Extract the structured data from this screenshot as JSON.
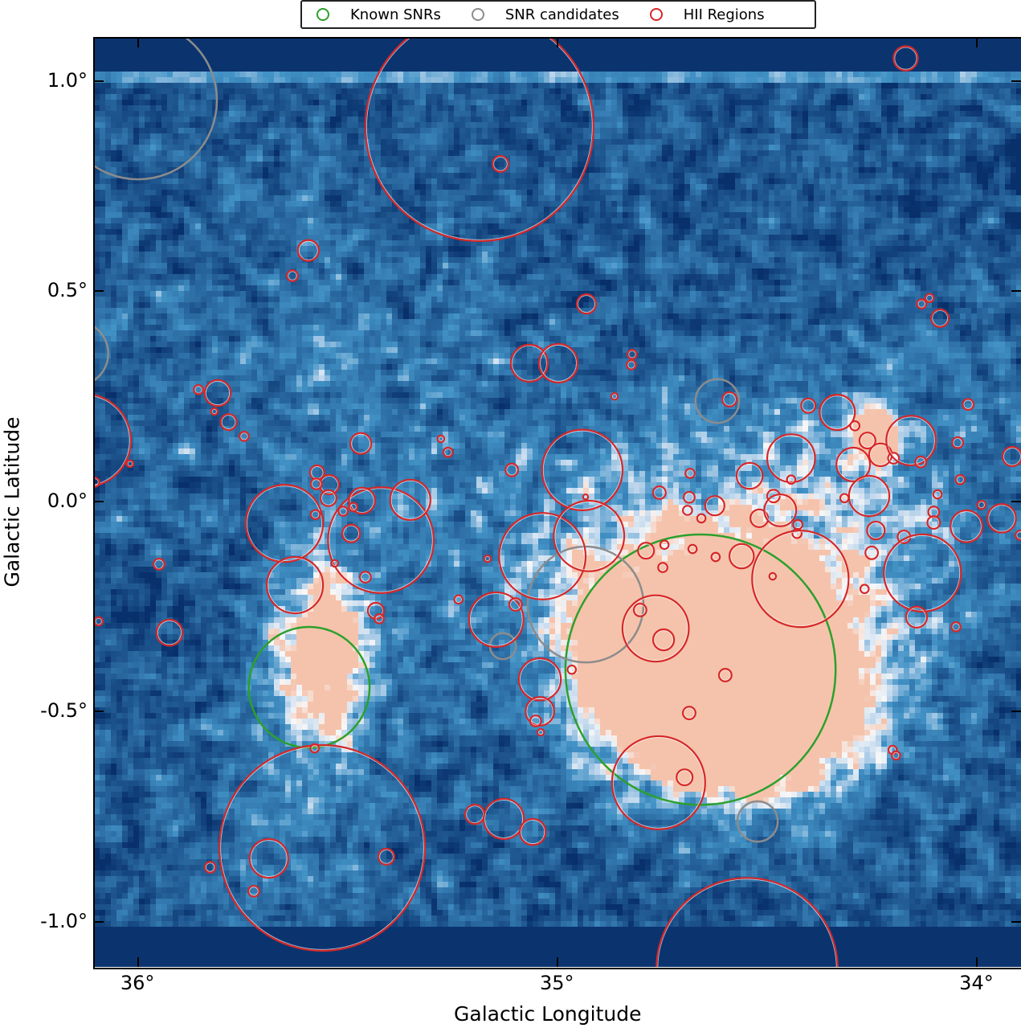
{
  "chart_data": {
    "type": "scatter",
    "xlabel": "Galactic Longitude",
    "ylabel": "Galactic Latitude",
    "xlim": [
      36.105,
      33.895
    ],
    "ylim": [
      -1.107,
      1.103
    ],
    "x_ticks": [
      {
        "value": 36,
        "label": "36°"
      },
      {
        "value": 35,
        "label": "35°"
      },
      {
        "value": 34,
        "label": "34°"
      }
    ],
    "y_ticks": [
      {
        "value": 1.0,
        "label": "1.0°"
      },
      {
        "value": 0.5,
        "label": "0.5°"
      },
      {
        "value": 0.0,
        "label": "0.0°"
      },
      {
        "value": -0.5,
        "label": "-0.5°"
      },
      {
        "value": -1.0,
        "label": "-1.0°"
      }
    ],
    "background": "intensity map, blue-white-red colormap",
    "legend_position": "top-center, outside plot",
    "circle_format": [
      "longitude_deg",
      "latitude_deg",
      "radius_deg"
    ],
    "series": [
      {
        "name": "Known SNRs",
        "color": "#2ca02c",
        "circles": [
          [
            35.592,
            -0.442,
            0.144
          ],
          [
            34.659,
            -0.4,
            0.322
          ]
        ]
      },
      {
        "name": "SNR candidates",
        "color": "#8c8c8c",
        "circles": [
          [
            36.0,
            0.954,
            0.188
          ],
          [
            36.148,
            0.352,
            0.077
          ],
          [
            34.619,
            0.239,
            0.052
          ],
          [
            34.933,
            -0.245,
            0.138
          ],
          [
            35.13,
            -0.344,
            0.031
          ],
          [
            34.523,
            -0.761,
            0.048
          ]
        ]
      },
      {
        "name": "HII Regions",
        "color": "#d62728",
        "circles": [
          [
            35.186,
            0.891,
            0.272
          ],
          [
            35.136,
            0.803,
            0.019
          ],
          [
            34.17,
            1.054,
            0.029
          ],
          [
            35.594,
            0.597,
            0.025
          ],
          [
            35.632,
            0.537,
            0.013
          ],
          [
            34.931,
            0.47,
            0.023
          ],
          [
            35.067,
            0.329,
            0.044
          ],
          [
            34.998,
            0.329,
            0.046
          ],
          [
            34.822,
            0.35,
            0.011
          ],
          [
            34.824,
            0.325,
            0.011
          ],
          [
            34.864,
            0.25,
            0.008
          ],
          [
            35.81,
            0.258,
            0.031
          ],
          [
            35.856,
            0.266,
            0.011
          ],
          [
            35.818,
            0.214,
            0.008
          ],
          [
            35.784,
            0.189,
            0.019
          ],
          [
            35.747,
            0.155,
            0.011
          ],
          [
            36.128,
            0.145,
            0.111
          ],
          [
            36.019,
            0.09,
            0.008
          ],
          [
            35.469,
            0.138,
            0.025
          ],
          [
            35.278,
            0.149,
            0.008
          ],
          [
            35.261,
            0.117,
            0.011
          ],
          [
            35.109,
            0.075,
            0.015
          ],
          [
            34.941,
            0.075,
            0.096
          ],
          [
            34.933,
            0.011,
            0.006
          ],
          [
            35.651,
            -0.052,
            0.092
          ],
          [
            35.626,
            -0.199,
            0.067
          ],
          [
            35.421,
            -0.092,
            0.126
          ],
          [
            35.466,
            0.002,
            0.031
          ],
          [
            35.351,
            0.004,
            0.048
          ],
          [
            35.544,
            0.04,
            0.023
          ],
          [
            35.546,
            0.008,
            0.019
          ],
          [
            35.573,
            0.069,
            0.017
          ],
          [
            35.575,
            0.042,
            0.013
          ],
          [
            35.577,
            -0.031,
            0.011
          ],
          [
            35.511,
            -0.023,
            0.011
          ],
          [
            35.487,
            -0.013,
            0.01
          ],
          [
            35.492,
            -0.076,
            0.021
          ],
          [
            35.531,
            -0.147,
            0.008
          ],
          [
            35.458,
            -0.18,
            0.013
          ],
          [
            35.95,
            -0.149,
            0.013
          ],
          [
            35.433,
            -0.26,
            0.019
          ],
          [
            35.425,
            -0.279,
            0.011
          ],
          [
            36.094,
            -0.285,
            0.01
          ],
          [
            35.925,
            -0.312,
            0.031
          ],
          [
            35.036,
            -0.13,
            0.103
          ],
          [
            34.925,
            -0.082,
            0.084
          ],
          [
            35.167,
            -0.136,
            0.008
          ],
          [
            35.236,
            -0.233,
            0.01
          ],
          [
            35.146,
            -0.281,
            0.065
          ],
          [
            35.1,
            -0.245,
            0.015
          ],
          [
            35.042,
            -0.423,
            0.05
          ],
          [
            35.042,
            -0.499,
            0.034
          ],
          [
            35.052,
            -0.522,
            0.013
          ],
          [
            35.04,
            -0.549,
            0.008
          ],
          [
            34.966,
            -0.4,
            0.01
          ],
          [
            34.789,
            -0.117,
            0.019
          ],
          [
            34.745,
            -0.103,
            0.01
          ],
          [
            34.749,
            -0.157,
            0.011
          ],
          [
            34.678,
            -0.113,
            0.01
          ],
          [
            34.803,
            -0.258,
            0.015
          ],
          [
            34.766,
            -0.302,
            0.079
          ],
          [
            34.747,
            -0.329,
            0.025
          ],
          [
            34.6,
            -0.413,
            0.015
          ],
          [
            34.686,
            -0.503,
            0.015
          ],
          [
            34.759,
            -0.669,
            0.111
          ],
          [
            34.697,
            -0.656,
            0.019
          ],
          [
            34.542,
            0.061,
            0.031
          ],
          [
            34.684,
            0.067,
            0.011
          ],
          [
            34.757,
            0.021,
            0.015
          ],
          [
            34.686,
            0.01,
            0.013
          ],
          [
            34.69,
            -0.021,
            0.011
          ],
          [
            34.657,
            -0.04,
            0.01
          ],
          [
            34.625,
            -0.01,
            0.023
          ],
          [
            34.623,
            -0.132,
            0.01
          ],
          [
            34.59,
            0.243,
            0.017
          ],
          [
            34.561,
            -0.13,
            0.029
          ],
          [
            34.519,
            -0.04,
            0.021
          ],
          [
            34.443,
            0.103,
            0.057
          ],
          [
            34.485,
            0.013,
            0.015
          ],
          [
            34.469,
            -0.021,
            0.038
          ],
          [
            34.427,
            -0.055,
            0.011
          ],
          [
            34.429,
            -0.076,
            0.011
          ],
          [
            34.421,
            -0.184,
            0.115
          ],
          [
            34.487,
            -0.178,
            0.008
          ],
          [
            34.443,
            0.052,
            0.01
          ],
          [
            34.402,
            0.228,
            0.017
          ],
          [
            34.333,
            0.212,
            0.042
          ],
          [
            34.295,
            0.088,
            0.04
          ],
          [
            34.257,
            0.013,
            0.048
          ],
          [
            34.261,
            0.145,
            0.019
          ],
          [
            34.23,
            0.111,
            0.027
          ],
          [
            34.199,
            0.103,
            0.013
          ],
          [
            34.157,
            0.145,
            0.059
          ],
          [
            34.134,
            0.094,
            0.013
          ],
          [
            34.316,
            0.008,
            0.01
          ],
          [
            34.241,
            -0.069,
            0.021
          ],
          [
            34.174,
            -0.084,
            0.015
          ],
          [
            34.251,
            -0.122,
            0.015
          ],
          [
            34.268,
            -0.208,
            0.01
          ],
          [
            34.13,
            -0.17,
            0.092
          ],
          [
            34.144,
            -0.275,
            0.025
          ],
          [
            34.05,
            -0.298,
            0.011
          ],
          [
            34.025,
            -0.059,
            0.038
          ],
          [
            33.941,
            -0.04,
            0.034
          ],
          [
            33.897,
            -0.08,
            0.011
          ],
          [
            33.916,
            0.107,
            0.023
          ],
          [
            34.021,
            0.231,
            0.013
          ],
          [
            34.046,
            0.14,
            0.013
          ],
          [
            34.094,
            0.017,
            0.01
          ],
          [
            34.103,
            -0.025,
            0.013
          ],
          [
            34.103,
            -0.05,
            0.015
          ],
          [
            34.04,
            0.052,
            0.011
          ],
          [
            33.989,
            -0.008,
            0.01
          ],
          [
            34.132,
            0.47,
            0.011
          ],
          [
            34.113,
            0.484,
            0.01
          ],
          [
            34.088,
            0.436,
            0.021
          ],
          [
            35.561,
            -0.824,
            0.245
          ],
          [
            35.688,
            -0.849,
            0.046
          ],
          [
            35.408,
            -0.845,
            0.019
          ],
          [
            35.724,
            -0.927,
            0.013
          ],
          [
            35.828,
            -0.87,
            0.013
          ],
          [
            35.579,
            -0.587,
            0.01
          ],
          [
            35.197,
            -0.744,
            0.023
          ],
          [
            35.128,
            -0.755,
            0.048
          ],
          [
            35.059,
            -0.786,
            0.031
          ],
          [
            34.548,
            -1.111,
            0.216
          ],
          [
            34.201,
            -0.591,
            0.01
          ],
          [
            34.193,
            -0.604,
            0.01
          ],
          [
            34.291,
            0.18,
            0.011
          ],
          [
            36.103,
            0.046,
            0.011
          ]
        ]
      }
    ]
  },
  "legend": {
    "items": [
      {
        "label": "Known SNRs",
        "color": "#2ca02c"
      },
      {
        "label": "SNR candidates",
        "color": "#8c8c8c"
      },
      {
        "label": "HII Regions",
        "color": "#d62728"
      }
    ]
  }
}
